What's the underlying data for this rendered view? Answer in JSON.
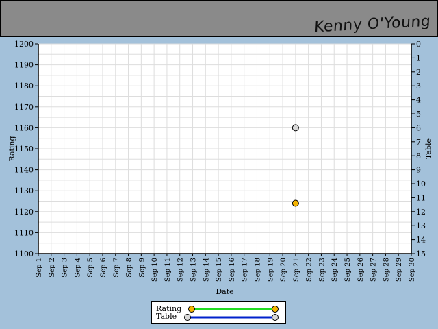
{
  "header": {
    "player_name": "Kenny O'Young"
  },
  "colors": {
    "rating_marker": "#f5b400",
    "rating_line": "#22dd22",
    "table_marker": "#d8d8d8",
    "table_line": "#0022cc",
    "plot_bg": "#ffffff",
    "grid": "#dddddd"
  },
  "chart_data": {
    "type": "scatter",
    "xlabel": "Date",
    "ylabel": "Rating",
    "y2label": "Table",
    "x_categories": [
      "Sep 1",
      "Sep 2",
      "Sep 3",
      "Sep 4",
      "Sep 5",
      "Sep 6",
      "Sep 7",
      "Sep 8",
      "Sep 9",
      "Sep 10",
      "Sep 11",
      "Sep 12",
      "Sep 13",
      "Sep 14",
      "Sep 15",
      "Sep 16",
      "Sep 17",
      "Sep 18",
      "Sep 19",
      "Sep 20",
      "Sep 21",
      "Sep 22",
      "Sep 23",
      "Sep 24",
      "Sep 25",
      "Sep 26",
      "Sep 27",
      "Sep 28",
      "Sep 29",
      "Sep 30"
    ],
    "ylim": [
      1100,
      1200
    ],
    "y_ticks": [
      1100,
      1110,
      1120,
      1130,
      1140,
      1150,
      1160,
      1170,
      1180,
      1190,
      1200
    ],
    "y2lim": [
      0,
      15
    ],
    "y2_ticks": [
      0,
      1,
      2,
      3,
      4,
      5,
      6,
      7,
      8,
      9,
      10,
      11,
      12,
      13,
      14,
      15
    ],
    "y2_inverted": true,
    "grid": true,
    "series": [
      {
        "name": "Rating",
        "axis": "left",
        "points": [
          {
            "x": "Sep 21",
            "y": 1124
          }
        ]
      },
      {
        "name": "Table",
        "axis": "right",
        "points": [
          {
            "x": "Sep 21",
            "y": 6
          }
        ]
      }
    ],
    "legend": {
      "placement": "bottom-center"
    }
  }
}
